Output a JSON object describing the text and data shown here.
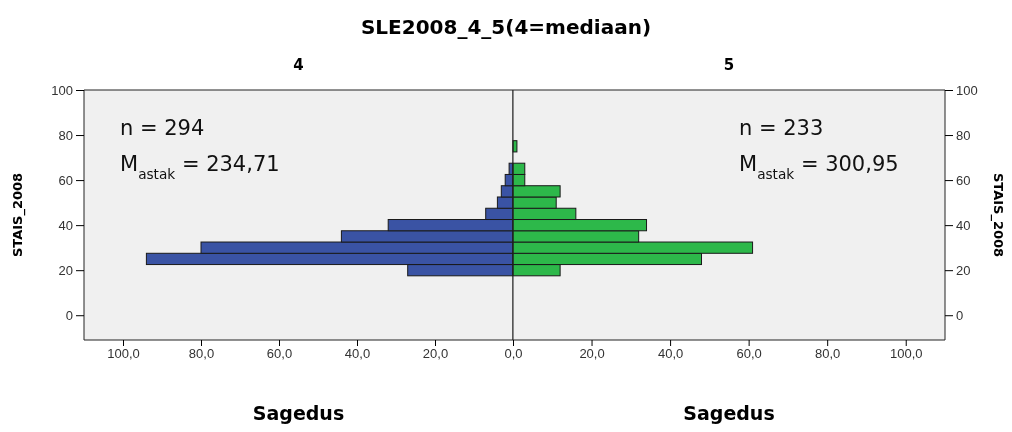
{
  "chart_data": [
    {
      "type": "histogram",
      "orientation": "horizontal",
      "title": "SLE2008_4_5(4=mediaan)",
      "subtitle": "4",
      "xlabel": "Sagedus",
      "ylabel": "STAIS_2008",
      "color": "#3a53a4",
      "bins": [
        17.5,
        22.5,
        27.5,
        32.5,
        37.5,
        42.5,
        47.5,
        52.5,
        57.5,
        62.5,
        67.5
      ],
      "values": [
        27,
        94,
        80,
        44,
        32,
        7,
        4,
        3,
        2,
        1
      ],
      "xlim": [
        110,
        0
      ],
      "xticks": [
        {
          "value": 100,
          "label": "100,0"
        },
        {
          "value": 80,
          "label": "80,0"
        },
        {
          "value": 60,
          "label": "60,0"
        },
        {
          "value": 40,
          "label": "40,0"
        },
        {
          "value": 20,
          "label": "20,0"
        },
        {
          "value": 0,
          "label": "0,0"
        }
      ],
      "ylim": [
        -11,
        100
      ],
      "yticks": [
        0,
        20,
        40,
        60,
        80,
        100
      ],
      "annotations": [
        "n = 294",
        "M$_{astak}$ = 234,71"
      ]
    },
    {
      "type": "histogram",
      "orientation": "horizontal",
      "subtitle": "5",
      "xlabel": "Sagedus",
      "ylabel": "STAIS_2008",
      "color": "#2db84a",
      "bins": [
        17.5,
        22.5,
        27.5,
        32.5,
        37.5,
        42.5,
        47.5,
        52.5,
        57.5,
        62.5,
        67.5,
        72.5,
        77.5
      ],
      "values": [
        12,
        48,
        61,
        32,
        34,
        16,
        11,
        12,
        3,
        3,
        0,
        1
      ],
      "xlim": [
        0,
        110
      ],
      "xticks": [
        {
          "value": 0,
          "label": null
        },
        {
          "value": 20,
          "label": "20,0"
        },
        {
          "value": 40,
          "label": "40,0"
        },
        {
          "value": 60,
          "label": "60,0"
        },
        {
          "value": 80,
          "label": "80,0"
        },
        {
          "value": 100,
          "label": "100,0"
        }
      ],
      "ylim": [
        -11,
        100
      ],
      "yticks": [
        0,
        20,
        40,
        60,
        80,
        100
      ],
      "annotations": [
        "n = 233",
        "M$_{astak}$ = 300,95"
      ]
    }
  ]
}
